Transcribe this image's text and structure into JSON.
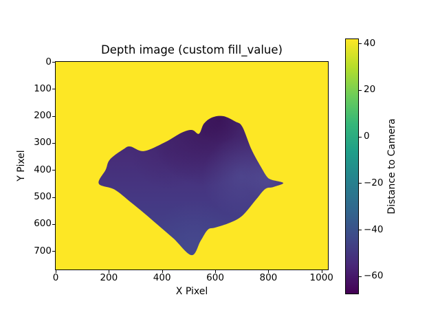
{
  "chart_data": {
    "type": "heatmap",
    "title": "Depth image (custom fill_value)",
    "xlabel": "X Pixel",
    "ylabel": "Y Pixel",
    "xlim": [
      0,
      1024
    ],
    "ylim": [
      768,
      0
    ],
    "grid": false,
    "x_ticks": [
      {
        "value": 0,
        "label": "0"
      },
      {
        "value": 200,
        "label": "200"
      },
      {
        "value": 400,
        "label": "400"
      },
      {
        "value": 600,
        "label": "600"
      },
      {
        "value": 800,
        "label": "800"
      },
      {
        "value": 1000,
        "label": "1000"
      }
    ],
    "y_ticks": [
      {
        "value": 0,
        "label": "0"
      },
      {
        "value": 100,
        "label": "100"
      },
      {
        "value": 200,
        "label": "200"
      },
      {
        "value": 300,
        "label": "300"
      },
      {
        "value": 400,
        "label": "400"
      },
      {
        "value": 500,
        "label": "500"
      },
      {
        "value": 600,
        "label": "600"
      },
      {
        "value": 700,
        "label": "700"
      }
    ],
    "background_fill_color": "#fde725",
    "colorbar": {
      "label": "Distance to Camera",
      "colormap": "viridis",
      "vmin": -67.4,
      "vmax": 41.8,
      "ticks": [
        {
          "value": 40,
          "label": "40"
        },
        {
          "value": 20,
          "label": "20"
        },
        {
          "value": 0,
          "label": "0"
        },
        {
          "value": -20,
          "label": "−20"
        },
        {
          "value": -40,
          "label": "−40"
        },
        {
          "value": -60,
          "label": "−60"
        }
      ],
      "gradient_stops": [
        "#fde725",
        "#b5de2b",
        "#6dcd59",
        "#35b779",
        "#1f9e89",
        "#26828e",
        "#31688e",
        "#3e4a89",
        "#482878",
        "#440154"
      ]
    },
    "region": {
      "description": "valid-depth blob; values span roughly -67 to -40 (dark purple top, slate blue bottom); surrounding area is fill_value (bright yellow)",
      "outline_points": [
        [
          162,
          450
        ],
        [
          188,
          399
        ],
        [
          204,
          361
        ],
        [
          255,
          323
        ],
        [
          281,
          313
        ],
        [
          332,
          330
        ],
        [
          410,
          298
        ],
        [
          474,
          262
        ],
        [
          513,
          252
        ],
        [
          539,
          266
        ],
        [
          558,
          228
        ],
        [
          590,
          205
        ],
        [
          631,
          201
        ],
        [
          676,
          221
        ],
        [
          702,
          240
        ],
        [
          736,
          323
        ],
        [
          771,
          387
        ],
        [
          794,
          424
        ],
        [
          812,
          436
        ],
        [
          856,
          448
        ],
        [
          818,
          463
        ],
        [
          788,
          470
        ],
        [
          753,
          510
        ],
        [
          702,
          569
        ],
        [
          655,
          595
        ],
        [
          600,
          613
        ],
        [
          572,
          621
        ],
        [
          545,
          662
        ],
        [
          511,
          715
        ],
        [
          444,
          654
        ],
        [
          384,
          603
        ],
        [
          332,
          559
        ],
        [
          281,
          518
        ],
        [
          221,
          472
        ]
      ],
      "base_gradient": [
        {
          "offset": 0.0,
          "color": "#44266b"
        },
        {
          "offset": 0.3,
          "color": "#472e79"
        },
        {
          "offset": 0.55,
          "color": "#453883"
        },
        {
          "offset": 0.8,
          "color": "#424389"
        },
        {
          "offset": 1.0,
          "color": "#434a8c"
        }
      ],
      "shading": [
        {
          "cx": 560,
          "cy": 260,
          "r": 200,
          "color": "#380e52",
          "opacity": 0.55
        },
        {
          "cx": 615,
          "cy": 215,
          "r": 90,
          "color": "#35094e",
          "opacity": 0.45
        },
        {
          "cx": 420,
          "cy": 330,
          "r": 140,
          "color": "#3f1c63",
          "opacity": 0.3
        },
        {
          "cx": 700,
          "cy": 425,
          "r": 150,
          "color": "#565b9e",
          "opacity": 0.45
        },
        {
          "cx": 800,
          "cy": 430,
          "r": 90,
          "color": "#5a5fa3",
          "opacity": 0.4
        },
        {
          "cx": 520,
          "cy": 660,
          "r": 150,
          "color": "#4a4e92",
          "opacity": 0.4
        }
      ]
    }
  }
}
